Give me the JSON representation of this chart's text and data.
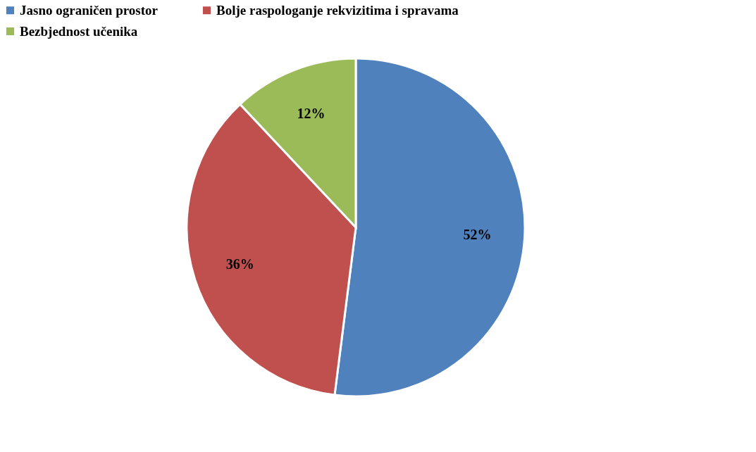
{
  "chart_data": {
    "type": "pie",
    "categories": [
      "Jasno ograničen prostor",
      "Bolje raspologanje rekvizitima i spravama",
      "Bezbjednost učenika"
    ],
    "values": [
      52,
      36,
      12
    ],
    "colors": [
      "#4f81bd",
      "#c0504d",
      "#9bbb59"
    ],
    "value_labels": [
      "52%",
      "36%",
      "12%"
    ],
    "legend": "top"
  }
}
